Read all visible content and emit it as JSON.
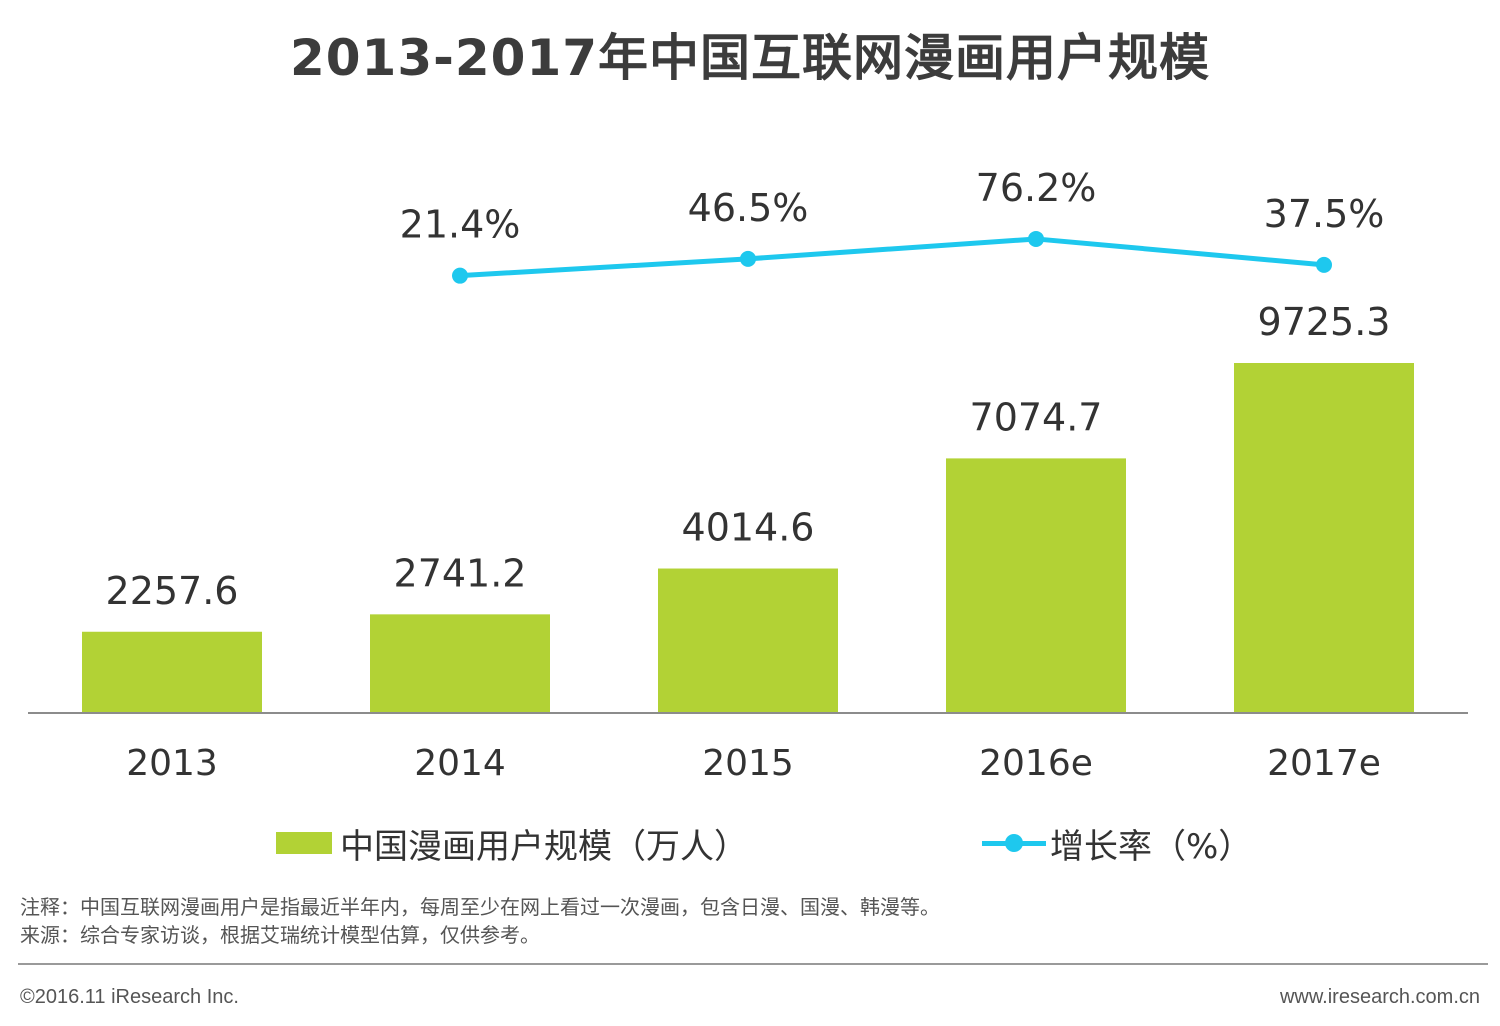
{
  "page": {
    "title": "2013-2017年中国互联网漫画用户规模",
    "note1": "注释：中国互联网漫画用户是指最近半年内，每周至少在网上看过一次漫画，包含日漫、国漫、韩漫等。",
    "note2": "来源：综合专家访谈，根据艾瑞统计模型估算，仅供参考。",
    "copyright": "©2016.11 iResearch Inc.",
    "website": "www.iresearch.com.cn"
  },
  "colors": {
    "bar": "#b2d235",
    "line": "#1ec8ee",
    "axis": "#8c8c8c"
  },
  "chart_data": {
    "type": "bar",
    "title": "2013-2017年中国互联网漫画用户规模",
    "categories": [
      "2013",
      "2014",
      "2015",
      "2016e",
      "2017e"
    ],
    "series": [
      {
        "name": "中国漫画用户规模（万人）",
        "type": "bar",
        "values": [
          2257.6,
          2741.2,
          4014.6,
          7074.7,
          9725.3
        ],
        "labels": [
          "2257.6",
          "2741.2",
          "4014.6",
          "7074.7",
          "9725.3"
        ]
      },
      {
        "name": "增长率（%）",
        "type": "line",
        "values": [
          null,
          21.4,
          46.5,
          76.2,
          37.5
        ],
        "labels": [
          "",
          "21.4%",
          "46.5%",
          "76.2%",
          "37.5%"
        ]
      }
    ],
    "legend": "bottom",
    "grid": false
  }
}
